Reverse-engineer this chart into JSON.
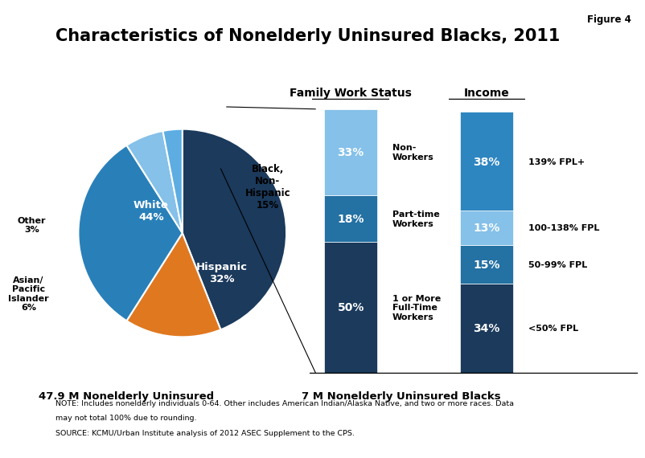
{
  "title": "Characteristics of Nonelderly Uninsured Blacks, 2011",
  "figure_label": "Figure 4",
  "pie_values": [
    44,
    15,
    32,
    6,
    3
  ],
  "pie_colors": [
    "#1b3a5c",
    "#e07820",
    "#2980b9",
    "#85c1e9",
    "#5dade2"
  ],
  "pie_startangle": 90,
  "pie_subtitle": "47.9 M Nonelderly Uninsured",
  "bar1_title": "Family Work Status",
  "bar1_values": [
    50,
    18,
    33
  ],
  "bar1_labels": [
    "1 or More\nFull-Time\nWorkers",
    "Part-time\nWorkers",
    "Non-\nWorkers"
  ],
  "bar1_colors": [
    "#1b3a5c",
    "#2471a3",
    "#85c1e9"
  ],
  "bar2_title": "Income",
  "bar2_values": [
    34,
    15,
    13,
    38
  ],
  "bar2_labels": [
    "<50% FPL",
    "50-99% FPL",
    "100-138% FPL",
    "139% FPL+"
  ],
  "bar2_colors": [
    "#1b3a5c",
    "#2471a3",
    "#85c1e9",
    "#2e86c1"
  ],
  "bar_subtitle": "7 M Nonelderly Uninsured Blacks",
  "note_line1": "NOTE: Includes nonelderly individuals 0-64. Other includes American Indian/Alaska Native, and two or more races. Data",
  "note_line2": "may not total 100% due to rounding.",
  "source": "SOURCE: KCMU/Urban Institute analysis of 2012 ASEC Supplement to the CPS.",
  "background_color": "#ffffff"
}
